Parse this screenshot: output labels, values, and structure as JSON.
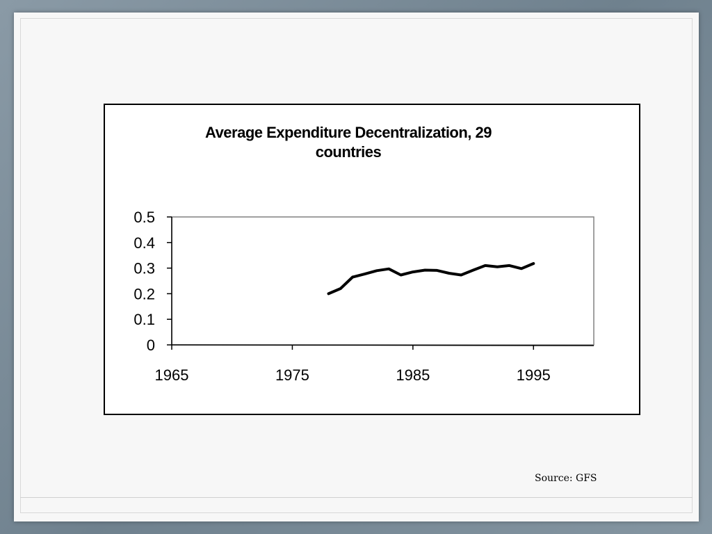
{
  "source_note": "Source: GFS",
  "chart_data": {
    "type": "line",
    "title": "Average Expenditure Decentralization, 29 countries",
    "title_lines": [
      "Average Expenditure Decentralization, 29",
      "countries"
    ],
    "xlabel": "",
    "ylabel": "",
    "xlim": [
      1965,
      2000
    ],
    "ylim": [
      0,
      0.5
    ],
    "x_ticks": [
      1965,
      1975,
      1985,
      1995
    ],
    "y_ticks": [
      0,
      0.1,
      0.2,
      0.3,
      0.4,
      0.5
    ],
    "y_tick_labels": [
      "0",
      "0.1",
      "0.2",
      "0.3",
      "0.4",
      "0.5"
    ],
    "grid": false,
    "series": [
      {
        "color": "#000000",
        "x": [
          1978,
          1979,
          1980,
          1981,
          1982,
          1983,
          1984,
          1985,
          1986,
          1987,
          1988,
          1989,
          1990,
          1991,
          1992,
          1993,
          1994,
          1995
        ],
        "y": [
          0.2,
          0.22,
          0.265,
          0.277,
          0.29,
          0.297,
          0.273,
          0.285,
          0.292,
          0.291,
          0.28,
          0.273,
          0.292,
          0.31,
          0.305,
          0.31,
          0.298,
          0.318
        ]
      }
    ]
  }
}
